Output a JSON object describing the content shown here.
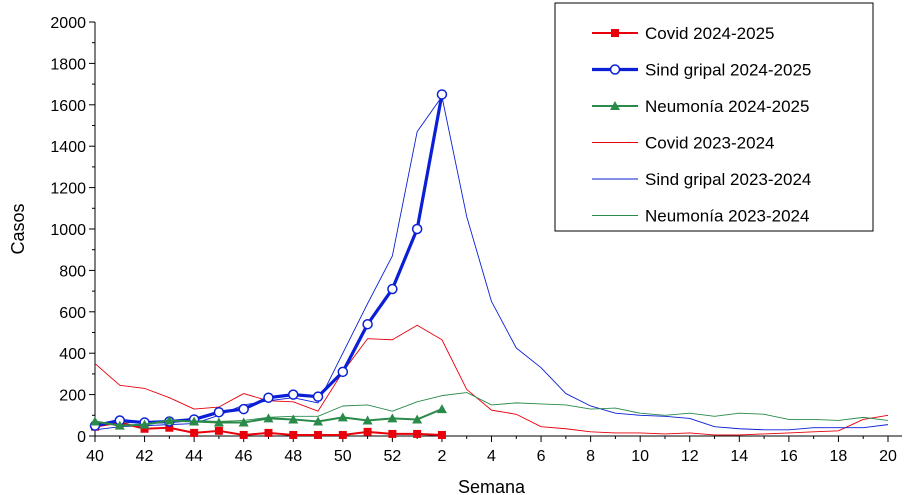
{
  "chart_data": {
    "type": "line",
    "title": "",
    "xlabel": "Semana",
    "ylabel": "Casos",
    "ylim": [
      0,
      2000
    ],
    "yticks": [
      0,
      200,
      400,
      600,
      800,
      1000,
      1200,
      1400,
      1600,
      1800,
      2000
    ],
    "weeks": [
      40,
      41,
      42,
      43,
      44,
      45,
      46,
      47,
      48,
      49,
      50,
      51,
      52,
      1,
      2,
      3,
      4,
      5,
      6,
      7,
      8,
      9,
      10,
      11,
      12,
      13,
      14,
      15,
      16,
      17,
      18,
      19,
      20
    ],
    "xtick_labels": [
      "40",
      "42",
      "44",
      "46",
      "48",
      "50",
      "52",
      "2",
      "4",
      "6",
      "8",
      "10",
      "12",
      "14",
      "16",
      "18",
      "20"
    ],
    "grid": false,
    "legend_position": "top-right",
    "series": [
      {
        "name": "Covid 2024-2025",
        "color": "#e8000b",
        "style": "solid",
        "marker": "square",
        "width": "medium",
        "values": [
          45,
          65,
          35,
          40,
          15,
          25,
          5,
          15,
          5,
          5,
          5,
          20,
          10,
          10,
          5
        ]
      },
      {
        "name": "Sind gripal 2024-2025",
        "color": "#0a1fd6",
        "style": "solid",
        "marker": "circle-open",
        "width": "thick",
        "values": [
          50,
          75,
          65,
          70,
          80,
          115,
          130,
          185,
          200,
          190,
          310,
          540,
          710,
          1000,
          1650
        ]
      },
      {
        "name": "Neumonía 2024-2025",
        "color": "#2a8a4a",
        "style": "solid",
        "marker": "triangle",
        "width": "medium",
        "values": [
          70,
          50,
          55,
          75,
          70,
          65,
          65,
          85,
          80,
          70,
          90,
          75,
          85,
          80,
          130
        ]
      },
      {
        "name": "Covid 2023-2024",
        "color": "#e8000b",
        "style": "thin",
        "marker": "none",
        "width": "thin",
        "values": [
          350,
          245,
          230,
          185,
          130,
          140,
          205,
          170,
          165,
          120,
          310,
          470,
          465,
          535,
          465,
          225,
          125,
          105,
          45,
          35,
          20,
          15,
          15,
          10,
          15,
          5,
          5,
          10,
          15,
          20,
          25,
          80,
          100
        ]
      },
      {
        "name": "Sind gripal 2023-2024",
        "color": "#0a1fd6",
        "style": "thin",
        "marker": "none",
        "width": "thin",
        "values": [
          30,
          45,
          50,
          55,
          60,
          100,
          150,
          170,
          185,
          160,
          400,
          640,
          870,
          1470,
          1640,
          1060,
          650,
          425,
          330,
          205,
          145,
          110,
          100,
          95,
          85,
          45,
          35,
          30,
          30,
          40,
          40,
          40,
          55
        ]
      },
      {
        "name": "Neumonía 2023-2024",
        "color": "#2a8a4a",
        "style": "thin",
        "marker": "none",
        "width": "thin",
        "values": [
          65,
          60,
          70,
          65,
          75,
          70,
          75,
          90,
          95,
          95,
          145,
          150,
          120,
          165,
          195,
          210,
          150,
          160,
          155,
          150,
          130,
          135,
          110,
          100,
          110,
          95,
          110,
          105,
          80,
          80,
          75,
          90,
          75
        ]
      }
    ]
  }
}
